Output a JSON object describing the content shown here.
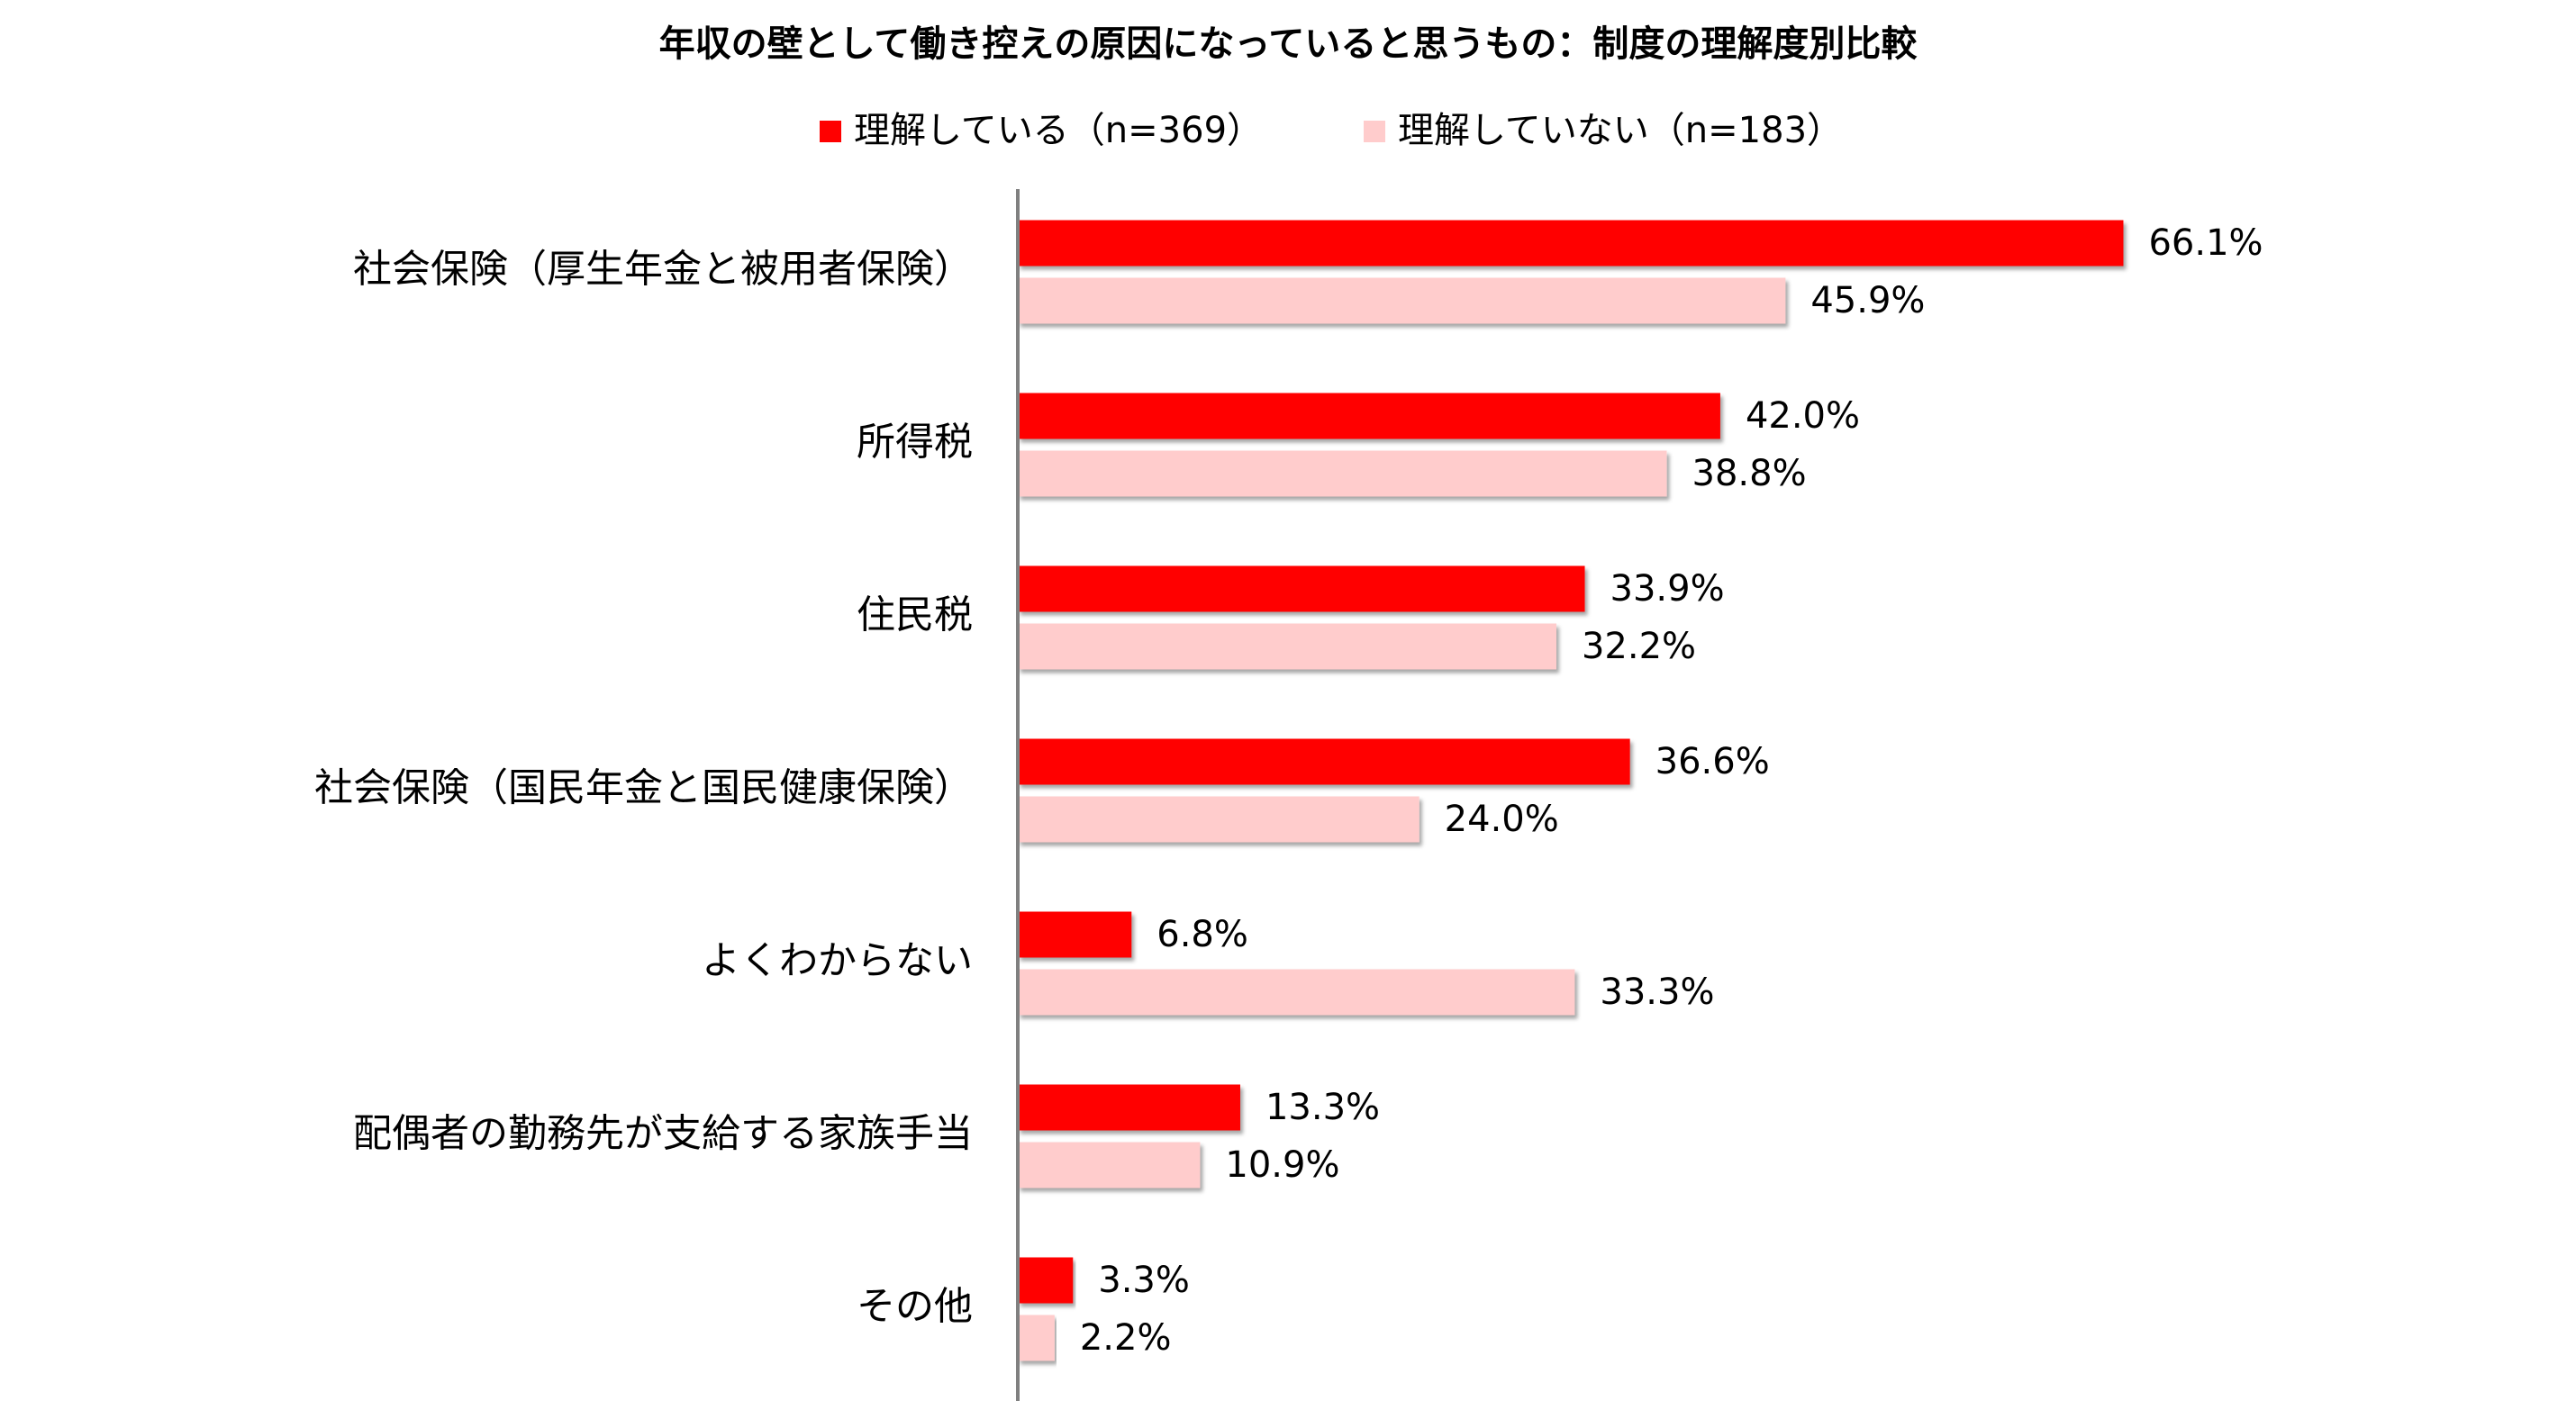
{
  "chart_data": {
    "type": "hbar",
    "title": "年収の壁として働き控えの原因になっていると思うもの：制度の理解度別比較",
    "categories": [
      "社会保険（厚生年金と被用者保険）",
      "所得税",
      "住民税",
      "社会保険（国民年金と国民健康保険）",
      "よくわからない",
      "配偶者の勤務先が支給する家族手当",
      "その他"
    ],
    "series": [
      {
        "name": "理解している（n=369）",
        "color": "#ff0000",
        "values": [
          66.1,
          42.0,
          33.9,
          36.6,
          6.8,
          13.3,
          3.3
        ],
        "value_labels": [
          "66.1%",
          "42.0%",
          "33.9%",
          "36.6%",
          "6.8%",
          "13.3%",
          "3.3%"
        ]
      },
      {
        "name": "理解していない（n=183）",
        "color": "#ffcccc",
        "values": [
          45.9,
          38.8,
          32.2,
          24.0,
          33.3,
          10.9,
          2.2
        ],
        "value_labels": [
          "45.9%",
          "38.8%",
          "32.2%",
          "24.0%",
          "33.3%",
          "10.9%",
          "2.2%"
        ]
      }
    ]
  }
}
